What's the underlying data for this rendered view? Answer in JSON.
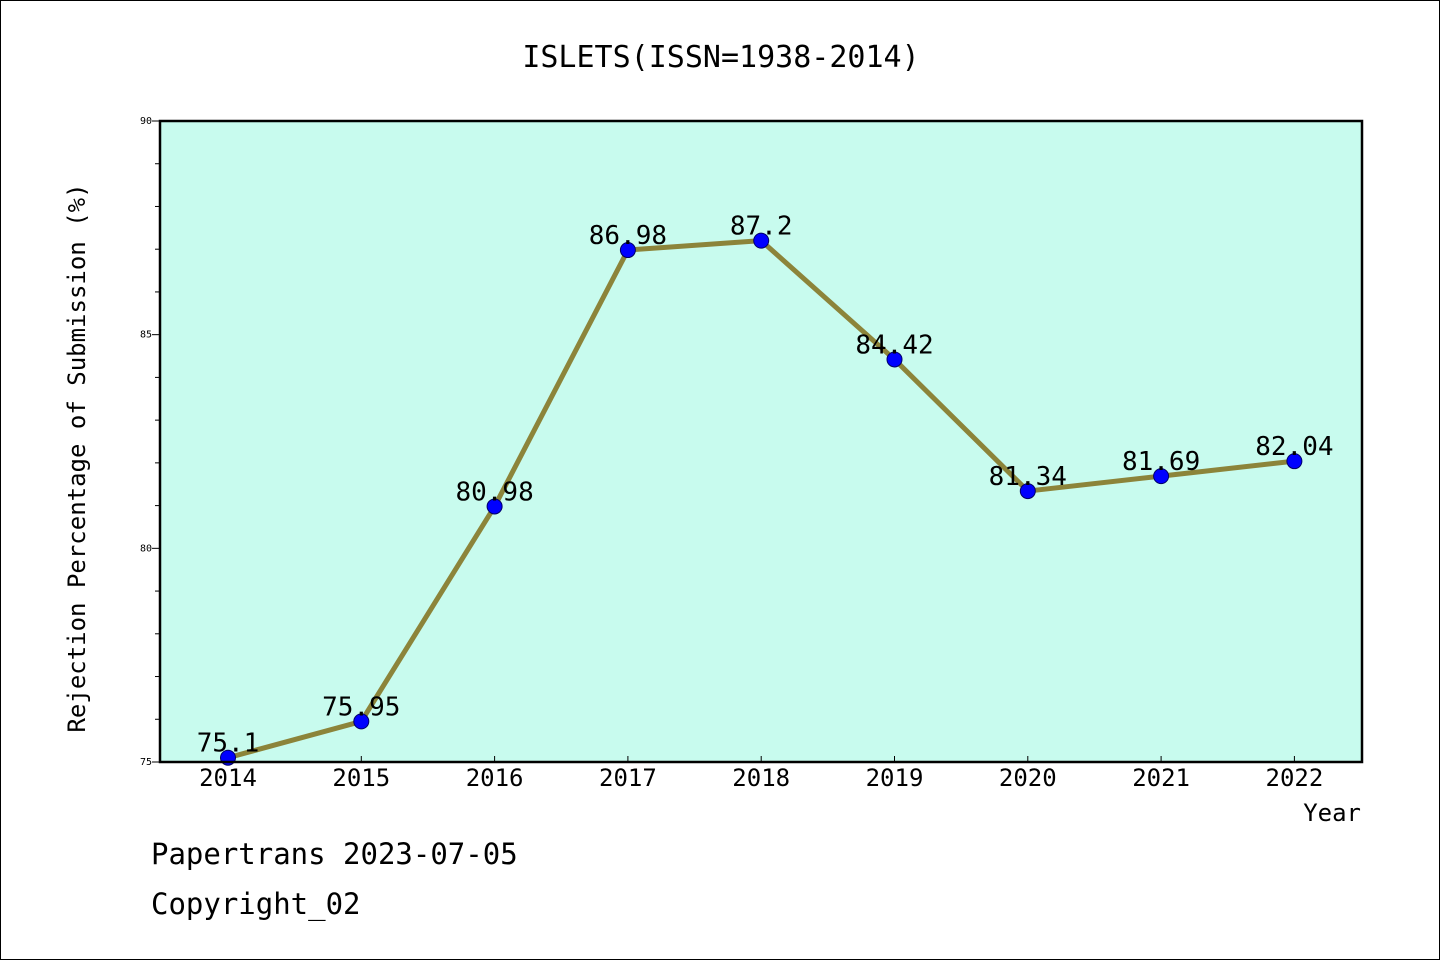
{
  "chart_data": {
    "type": "line",
    "title": "ISLETS(ISSN=1938-2014)",
    "xlabel": "Year",
    "ylabel": "Rejection Percentage of Submission (%)",
    "categories": [
      "2014",
      "2015",
      "2016",
      "2017",
      "2018",
      "2019",
      "2020",
      "2021",
      "2022"
    ],
    "values": [
      75.1,
      75.95,
      80.98,
      86.98,
      87.2,
      84.42,
      81.34,
      81.69,
      82.04
    ],
    "data_labels": [
      "75.1",
      "75.95",
      "80.98",
      "86.98",
      "87.2",
      "84.42",
      "81.34",
      "81.69",
      "82.04"
    ],
    "ylim": [
      75,
      90
    ],
    "yticks": [
      "75",
      "80",
      "85",
      "90"
    ],
    "grid": false,
    "colors": {
      "plot_background": "#c8fbee",
      "line": "#8c843a",
      "marker": "#0000ff"
    }
  },
  "footer": {
    "source": "Papertrans 2023-07-05",
    "copyright": "Copyright_02"
  }
}
